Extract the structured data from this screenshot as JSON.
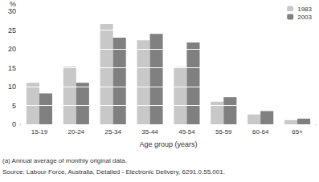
{
  "chart_data": {
    "type": "bar",
    "ylabel": "%",
    "xlabel": "Age group (years)",
    "annotations": [
      "(a) Annual average of monthly original data.",
      "Source: Labour Force, Australia, Detailed - Electronic Delivery, 6291.0.55.001."
    ],
    "categories": [
      "15-19",
      "20-24",
      "25-34",
      "35-44",
      "45-54",
      "55-59",
      "60-64",
      "65+"
    ],
    "series": [
      {
        "name": "1983",
        "color": "#c8c8c8",
        "values": [
          11,
          15.3,
          26.6,
          22.3,
          15.2,
          6,
          2.6,
          1.1
        ]
      },
      {
        "name": "2003",
        "color": "#808080",
        "values": [
          8.2,
          11,
          23,
          24,
          21.7,
          7.2,
          3.5,
          1.5
        ]
      }
    ],
    "ylim": [
      0,
      30
    ],
    "yticks": [
      0,
      5,
      10,
      15,
      20,
      25,
      30
    ],
    "grid": true,
    "legend": "top-right"
  }
}
